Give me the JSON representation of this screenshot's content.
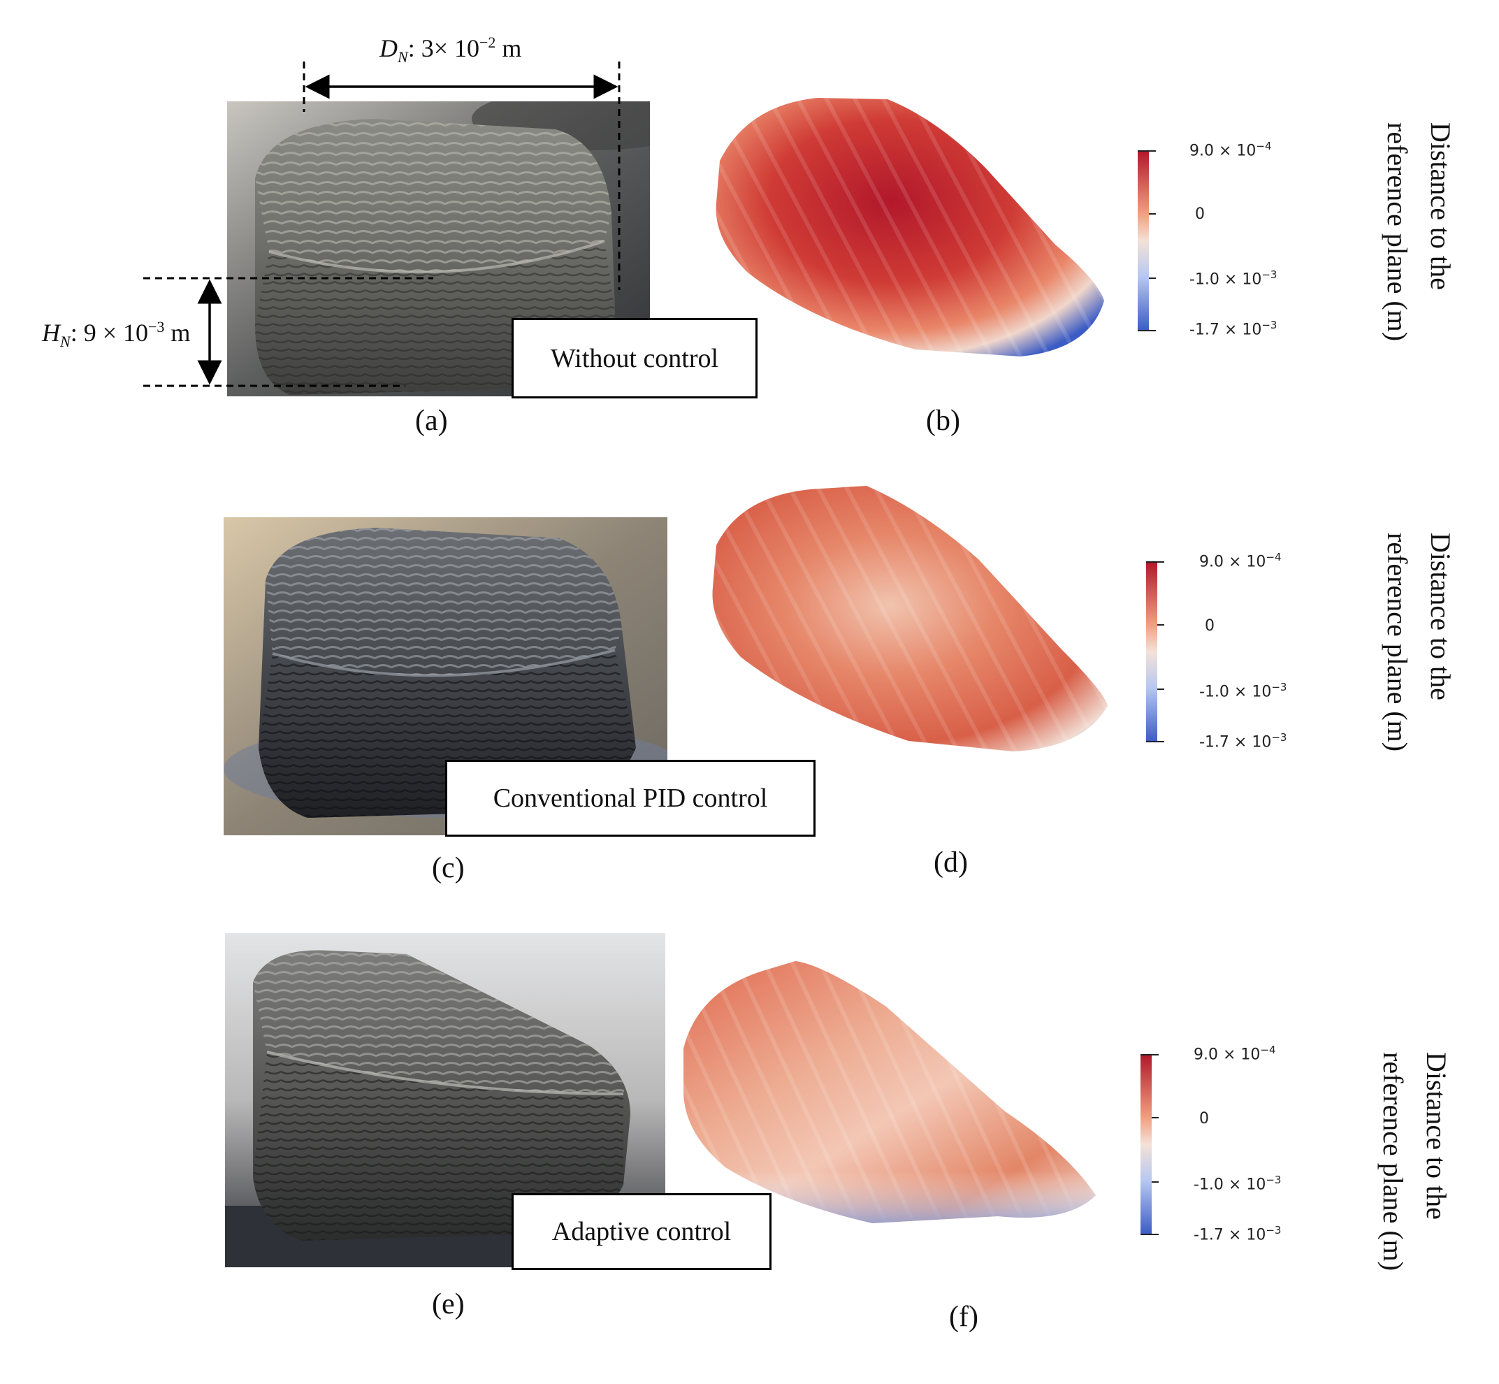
{
  "figure": {
    "dimension_width": {
      "var": "D",
      "sub": "N",
      "text": ": 3× 10",
      "exp": "−2",
      "unit": " m"
    },
    "dimension_height": {
      "var": "H",
      "sub": "N",
      "text": ": 9 × 10",
      "exp": "−3",
      "unit": " m"
    },
    "rows": [
      {
        "caption": "Without control",
        "photo_label": "(a)",
        "map_label": "(b)"
      },
      {
        "caption": "Conventional PID control",
        "photo_label": "(c)",
        "map_label": "(d)"
      },
      {
        "caption": "Adaptive control",
        "photo_label": "(e)",
        "map_label": "(f)"
      }
    ],
    "colorbar": {
      "ticks": [
        {
          "base": "9.0 × 10",
          "exp": "−4"
        },
        {
          "base": "0",
          "exp": ""
        },
        {
          "base": "-1.0 × 10",
          "exp": "−3"
        },
        {
          "base": "-1.7 × 10",
          "exp": "−3"
        }
      ],
      "title_line1": "Distance to the",
      "title_line2": "reference plane (m)",
      "colors": {
        "max": "#b2182b",
        "mid": "#f4e1d8",
        "min": "#3b5cc4"
      }
    }
  }
}
